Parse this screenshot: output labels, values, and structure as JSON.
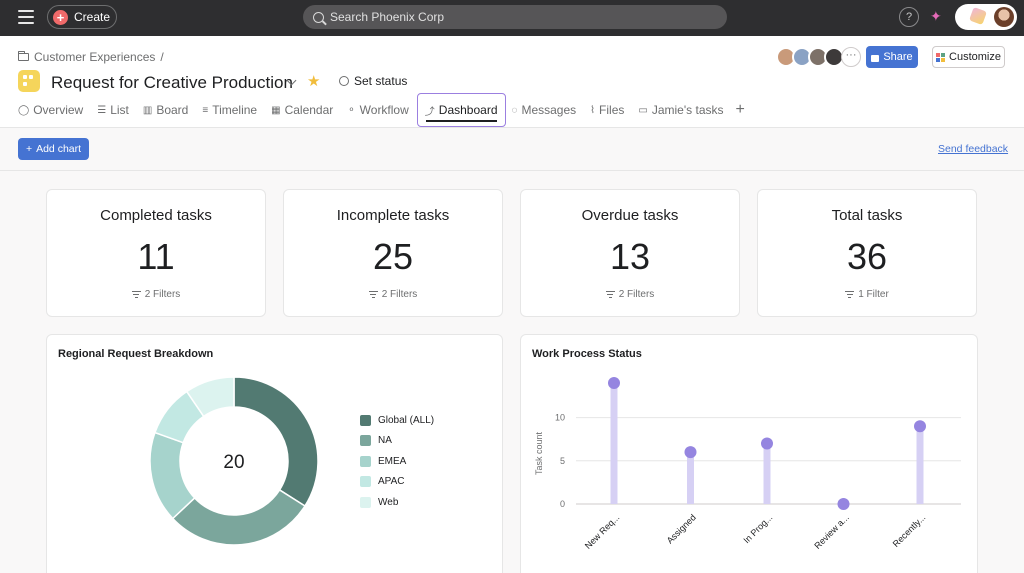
{
  "topbar": {
    "create_label": "Create",
    "search_placeholder": "Search Phoenix Corp",
    "help_label": "?",
    "icons": [
      "menu-icon",
      "plus-icon",
      "search-icon",
      "help-icon",
      "sparkle-icon",
      "avatar"
    ]
  },
  "header": {
    "breadcrumb": "Customer Experiences",
    "breadcrumb_sep": "/",
    "project_title": "Request for Creative Production",
    "set_status": "Set status",
    "share_label": "Share",
    "customize_label": "Customize",
    "more_members": "···",
    "member_colors": [
      "#c99a7a",
      "#8aa2c4",
      "#7d7168",
      "#3d3a3a"
    ]
  },
  "tabs": [
    {
      "label": "Overview",
      "glyph": "◯"
    },
    {
      "label": "List",
      "glyph": "☰"
    },
    {
      "label": "Board",
      "glyph": "▥"
    },
    {
      "label": "Timeline",
      "glyph": "≡"
    },
    {
      "label": "Calendar",
      "glyph": "▦"
    },
    {
      "label": "Workflow",
      "glyph": "⚬"
    },
    {
      "label": "Dashboard",
      "glyph": "⤴",
      "active": true
    },
    {
      "label": "Messages",
      "glyph": "◌"
    },
    {
      "label": "Files",
      "glyph": "⌇"
    },
    {
      "label": "Jamie's tasks",
      "glyph": "▭"
    }
  ],
  "toolbar": {
    "add_chart_label": "Add chart",
    "send_feedback": "Send feedback"
  },
  "stats": [
    {
      "label": "Completed tasks",
      "value": "11",
      "filters": "2 Filters"
    },
    {
      "label": "Incomplete tasks",
      "value": "25",
      "filters": "2 Filters"
    },
    {
      "label": "Overdue tasks",
      "value": "13",
      "filters": "2 Filters"
    },
    {
      "label": "Total tasks",
      "value": "36",
      "filters": "1 Filter"
    }
  ],
  "chart_data": [
    {
      "type": "pie",
      "title": "Regional Request Breakdown",
      "center_value": "20",
      "categories": [
        "Global (ALL)",
        "NA",
        "EMEA",
        "APAC",
        "Web"
      ],
      "values": [
        6.8,
        5.8,
        3.5,
        2.0,
        1.9
      ],
      "colors": [
        "#527a72",
        "#7ba69c",
        "#a6d3cc",
        "#c2e8e3",
        "#dcf3ef"
      ],
      "legend": "right"
    },
    {
      "type": "scatter",
      "title": "Work Process Status",
      "ylabel": "Task count",
      "categories": [
        "New Req...",
        "Assigned",
        "In Prog...",
        "Review a...",
        "Recently..."
      ],
      "values": [
        14,
        6,
        7,
        0,
        9
      ],
      "ylim": [
        0,
        14
      ],
      "yticks": [
        0,
        5,
        10
      ],
      "grid": true,
      "color": "#9585e0",
      "stem_color": "#d6d0f4"
    }
  ]
}
